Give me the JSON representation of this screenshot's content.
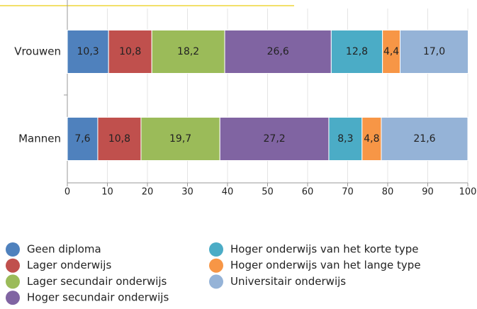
{
  "chart_data": {
    "type": "stacked-barh",
    "categories": [
      "Vrouwen",
      "Mannen"
    ],
    "series": [
      {
        "name": "Geen diploma",
        "color": "#4f81bd",
        "values": [
          10.3,
          7.6
        ],
        "value_labels": [
          "10,3",
          "7,6"
        ]
      },
      {
        "name": "Lager onderwijs",
        "color": "#c0504d",
        "values": [
          10.8,
          10.8
        ],
        "value_labels": [
          "10,8",
          "10,8"
        ]
      },
      {
        "name": "Lager secundair onderwijs",
        "color": "#9bbb59",
        "values": [
          18.2,
          19.7
        ],
        "value_labels": [
          "18,2",
          "19,7"
        ]
      },
      {
        "name": "Hoger secundair onderwijs",
        "color": "#8064a2",
        "values": [
          26.6,
          27.2
        ],
        "value_labels": [
          "26,6",
          "27,2"
        ]
      },
      {
        "name": "Hoger onderwijs van het korte type",
        "color": "#4bacc6",
        "values": [
          12.8,
          8.3
        ],
        "value_labels": [
          "12,8",
          "8,3"
        ]
      },
      {
        "name": "Hoger onderwijs van het lange type",
        "color": "#f79646",
        "values": [
          4.4,
          4.8
        ],
        "value_labels": [
          "4,4",
          "4,8"
        ]
      },
      {
        "name": "Universitair onderwijs",
        "color": "#95b3d7",
        "values": [
          17.0,
          21.6
        ],
        "value_labels": [
          "17,0",
          "21,6"
        ]
      }
    ],
    "xlim": [
      0,
      100
    ],
    "xticks": [
      0,
      10,
      20,
      30,
      40,
      50,
      60,
      70,
      80,
      90,
      100
    ],
    "grid": true
  }
}
